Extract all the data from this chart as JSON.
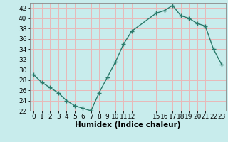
{
  "x": [
    0,
    1,
    2,
    3,
    4,
    5,
    6,
    7,
    8,
    9,
    10,
    11,
    12,
    15,
    16,
    17,
    18,
    19,
    20,
    21,
    22,
    23
  ],
  "y": [
    29,
    27.5,
    26.5,
    25.5,
    24,
    23,
    22.5,
    22,
    25.5,
    28.5,
    31.5,
    35,
    37.5,
    41,
    41.5,
    42.5,
    40.5,
    40,
    39,
    38.5,
    34,
    31
  ],
  "line_color": "#2a7a6a",
  "marker": "+",
  "bg_color": "#c8ecec",
  "grid_color": "#e8b8b8",
  "xlabel": "Humidex (Indice chaleur)",
  "ylim": [
    22,
    43
  ],
  "yticks": [
    22,
    24,
    26,
    28,
    30,
    32,
    34,
    36,
    38,
    40,
    42
  ],
  "xticks": [
    0,
    1,
    2,
    3,
    4,
    5,
    6,
    7,
    8,
    9,
    10,
    11,
    12,
    15,
    16,
    17,
    18,
    19,
    20,
    21,
    22,
    23
  ],
  "xlim": [
    -0.5,
    23.5
  ],
  "tick_fontsize": 6.5,
  "xlabel_fontsize": 7.5,
  "line_width": 1.0,
  "marker_size": 4,
  "marker_edge_width": 1.0
}
